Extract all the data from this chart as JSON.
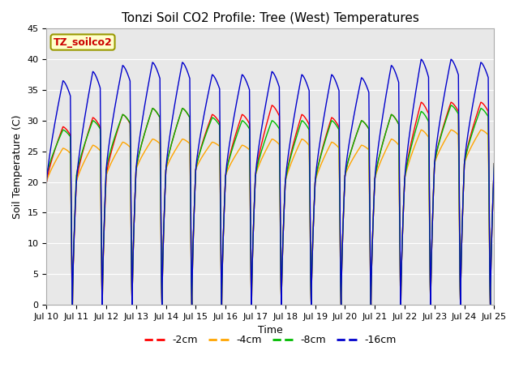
{
  "title": "Tonzi Soil CO2 Profile: Tree (West) Temperatures",
  "ylabel": "Soil Temperature (C)",
  "xlabel": "Time",
  "ylim": [
    0,
    45
  ],
  "yticks": [
    0,
    5,
    10,
    15,
    20,
    25,
    30,
    35,
    40,
    45
  ],
  "background_color": "#e8e8e8",
  "label_box_text": "TZ_soilco2",
  "label_box_facecolor": "#ffffcc",
  "label_box_edgecolor": "#999900",
  "series": [
    {
      "label": "-2cm",
      "color": "#ff0000"
    },
    {
      "label": "-4cm",
      "color": "#ffa500"
    },
    {
      "label": "-8cm",
      "color": "#00bb00"
    },
    {
      "label": "-16cm",
      "color": "#0000cc"
    }
  ],
  "n_days": 15,
  "daily_cycles": [
    {
      "peak_2": 29,
      "peak_4": 25.5,
      "peak_8": 28.5,
      "peak_16": 36.5,
      "base_2": 20,
      "base_4": 20,
      "base_8": 21,
      "base_16": 20
    },
    {
      "peak_2": 30.5,
      "peak_4": 26,
      "peak_8": 30,
      "peak_16": 38,
      "base_2": 20,
      "base_4": 20,
      "base_8": 21,
      "base_16": 20
    },
    {
      "peak_2": 31,
      "peak_4": 26.5,
      "peak_8": 31,
      "peak_16": 39,
      "base_2": 21,
      "base_4": 21,
      "base_8": 22,
      "base_16": 22
    },
    {
      "peak_2": 32,
      "peak_4": 27,
      "peak_8": 32,
      "peak_16": 39.5,
      "base_2": 22,
      "base_4": 22,
      "base_8": 22,
      "base_16": 22
    },
    {
      "peak_2": 32,
      "peak_4": 27,
      "peak_8": 32,
      "peak_16": 39.5,
      "base_2": 22,
      "base_4": 22,
      "base_8": 22,
      "base_16": 22
    },
    {
      "peak_2": 31,
      "peak_4": 26.5,
      "peak_8": 30.5,
      "peak_16": 37.5,
      "base_2": 22,
      "base_4": 22,
      "base_8": 22,
      "base_16": 22
    },
    {
      "peak_2": 31,
      "peak_4": 26,
      "peak_8": 30,
      "peak_16": 37.5,
      "base_2": 21,
      "base_4": 21,
      "base_8": 21,
      "base_16": 21
    },
    {
      "peak_2": 32.5,
      "peak_4": 27,
      "peak_8": 30,
      "peak_16": 38,
      "base_2": 21,
      "base_4": 21,
      "base_8": 21,
      "base_16": 21
    },
    {
      "peak_2": 31,
      "peak_4": 27,
      "peak_8": 30,
      "peak_16": 37.5,
      "base_2": 20,
      "base_4": 20,
      "base_8": 20,
      "base_16": 20
    },
    {
      "peak_2": 30.5,
      "peak_4": 26.5,
      "peak_8": 30,
      "peak_16": 37.5,
      "base_2": 20,
      "base_4": 20,
      "base_8": 20,
      "base_16": 20
    },
    {
      "peak_2": 30,
      "peak_4": 26,
      "peak_8": 30,
      "peak_16": 37,
      "base_2": 21,
      "base_4": 21,
      "base_8": 21,
      "base_16": 21
    },
    {
      "peak_2": 31,
      "peak_4": 27,
      "peak_8": 31,
      "peak_16": 39,
      "base_2": 20.5,
      "base_4": 20.5,
      "base_8": 20.5,
      "base_16": 20.5
    },
    {
      "peak_2": 33,
      "peak_4": 28.5,
      "peak_8": 31.5,
      "peak_16": 40,
      "base_2": 20.5,
      "base_4": 20.5,
      "base_8": 20.5,
      "base_16": 20.5
    },
    {
      "peak_2": 33,
      "peak_4": 28.5,
      "peak_8": 32.5,
      "peak_16": 40,
      "base_2": 23,
      "base_4": 23,
      "base_8": 23,
      "base_16": 23
    },
    {
      "peak_2": 33,
      "peak_4": 28.5,
      "peak_8": 32,
      "peak_16": 39.5,
      "base_2": 23,
      "base_4": 23,
      "base_8": 23,
      "base_16": 23
    }
  ],
  "tick_labels": [
    "Jul 10",
    "Jul 11",
    "Jul 12",
    "Jul 13",
    "Jul 14",
    "Jul 15",
    "Jul 16",
    "Jul 17",
    "Jul 18",
    "Jul 19",
    "Jul 20",
    "Jul 21",
    "Jul 22",
    "Jul 23",
    "Jul 24",
    "Jul 25"
  ]
}
